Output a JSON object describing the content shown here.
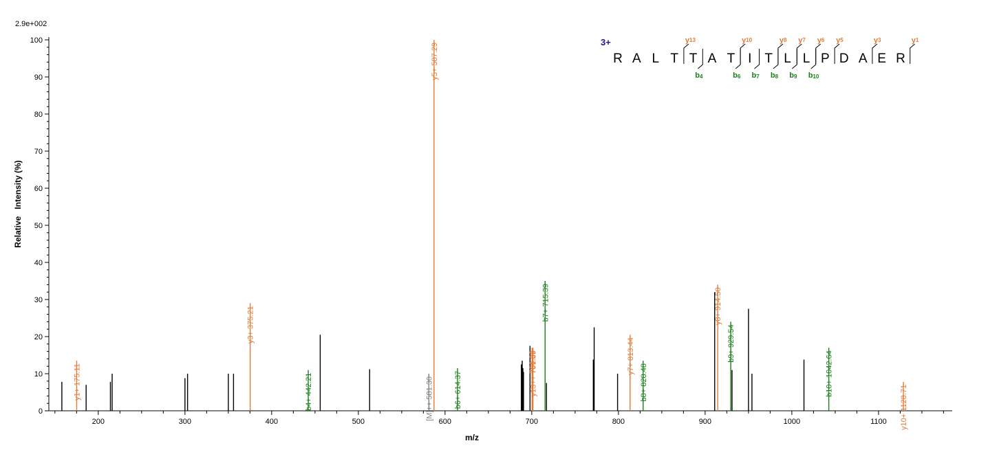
{
  "chart_data": {
    "type": "bar",
    "intensity_scale_label": "2.9e+002",
    "xlabel": "m/z",
    "ylabel": "Relative   Intensity (%)",
    "xlim": [
      143,
      1185
    ],
    "ylim": [
      0,
      100
    ],
    "x_ticks": [
      200,
      300,
      400,
      500,
      600,
      700,
      800,
      900,
      1000,
      1100
    ],
    "y_ticks": [
      0,
      10,
      20,
      30,
      40,
      50,
      60,
      70,
      80,
      90,
      100
    ],
    "colors": {
      "y_ion": "#e07b39",
      "b_ion": "#1a7f1a",
      "precursor": "#808080",
      "other": "#000000"
    },
    "peaks": [
      {
        "mz": 158.0,
        "intensity": 7.8,
        "type": "other",
        "label": ""
      },
      {
        "mz": 175.11,
        "intensity": 13.5,
        "type": "y",
        "label": "y1+ 175.11"
      },
      {
        "mz": 186.0,
        "intensity": 7.0,
        "type": "other",
        "label": ""
      },
      {
        "mz": 214.0,
        "intensity": 7.8,
        "type": "other",
        "label": ""
      },
      {
        "mz": 216.0,
        "intensity": 10.0,
        "type": "other",
        "label": ""
      },
      {
        "mz": 300.0,
        "intensity": 8.8,
        "type": "other",
        "label": ""
      },
      {
        "mz": 303.0,
        "intensity": 10.0,
        "type": "other",
        "label": ""
      },
      {
        "mz": 350.0,
        "intensity": 10.0,
        "type": "other",
        "label": ""
      },
      {
        "mz": 356.0,
        "intensity": 10.0,
        "type": "other",
        "label": ""
      },
      {
        "mz": 375.21,
        "intensity": 29.0,
        "type": "y",
        "label": "y3+ 375.21"
      },
      {
        "mz": 442.21,
        "intensity": 11.0,
        "type": "b",
        "label": "b4+ 442.21"
      },
      {
        "mz": 456.0,
        "intensity": 20.5,
        "type": "other",
        "label": ""
      },
      {
        "mz": 513.0,
        "intensity": 11.2,
        "type": "other",
        "label": ""
      },
      {
        "mz": 581.3,
        "intensity": 10.0,
        "type": "precursor",
        "label": "[M]++ 581.30"
      },
      {
        "mz": 587.29,
        "intensity": 100.0,
        "type": "y",
        "label": "y5+ 587.29"
      },
      {
        "mz": 614.37,
        "intensity": 11.5,
        "type": "b",
        "label": "b6+ 614.37"
      },
      {
        "mz": 688.0,
        "intensity": 12.5,
        "type": "other",
        "label": ""
      },
      {
        "mz": 689.0,
        "intensity": 13.5,
        "type": "other",
        "label": ""
      },
      {
        "mz": 689.8,
        "intensity": 11.5,
        "type": "other",
        "label": ""
      },
      {
        "mz": 690.5,
        "intensity": 10.5,
        "type": "other",
        "label": ""
      },
      {
        "mz": 698.0,
        "intensity": 17.5,
        "type": "other",
        "label": ""
      },
      {
        "mz": 700.36,
        "intensity": 17.0,
        "type": "y",
        "label": "700.36"
      },
      {
        "mz": 701.39,
        "intensity": 17.0,
        "type": "y",
        "label": "y13++ 701.39"
      },
      {
        "mz": 715.39,
        "intensity": 35.0,
        "type": "b",
        "label": "b7+ 715.39"
      },
      {
        "mz": 717.0,
        "intensity": 7.5,
        "type": "other",
        "label": ""
      },
      {
        "mz": 771.0,
        "intensity": 13.8,
        "type": "other",
        "label": ""
      },
      {
        "mz": 772.0,
        "intensity": 22.5,
        "type": "other",
        "label": ""
      },
      {
        "mz": 799.0,
        "intensity": 10.0,
        "type": "other",
        "label": ""
      },
      {
        "mz": 813.44,
        "intensity": 20.5,
        "type": "y",
        "label": "y7+ 813.44"
      },
      {
        "mz": 828.48,
        "intensity": 13.5,
        "type": "b",
        "label": "b8+ 828.48"
      },
      {
        "mz": 911.0,
        "intensity": 32.0,
        "type": "other",
        "label": ""
      },
      {
        "mz": 914.5,
        "intensity": 34.0,
        "type": "y",
        "label": "y8+ 914.50"
      },
      {
        "mz": 929.54,
        "intensity": 24.0,
        "type": "b",
        "label": "b9+ 929.54"
      },
      {
        "mz": 931.0,
        "intensity": 11.0,
        "type": "other",
        "label": ""
      },
      {
        "mz": 950.0,
        "intensity": 27.5,
        "type": "other",
        "label": ""
      },
      {
        "mz": 954.0,
        "intensity": 10.0,
        "type": "other",
        "label": ""
      },
      {
        "mz": 1014.0,
        "intensity": 13.8,
        "type": "other",
        "label": ""
      },
      {
        "mz": 1042.64,
        "intensity": 17.0,
        "type": "b",
        "label": "b10+ 1042.64"
      },
      {
        "mz": 1128.71,
        "intensity": 7.8,
        "type": "y",
        "label": "y10+ 1128.71"
      }
    ],
    "sequence": {
      "charge": "3+",
      "residues": [
        "R",
        "A",
        "L",
        "T",
        "T",
        "A",
        "T",
        "I",
        "T",
        "L",
        "L",
        "P",
        "D",
        "A",
        "E",
        "R"
      ],
      "y_ions": [
        {
          "after": 3,
          "ion": "y",
          "num": "13"
        },
        {
          "after": 6,
          "ion": "y",
          "num": "10"
        },
        {
          "after": 8,
          "ion": "y",
          "num": "8"
        },
        {
          "after": 9,
          "ion": "y",
          "num": "7"
        },
        {
          "after": 10,
          "ion": "y",
          "num": "6"
        },
        {
          "after": 11,
          "ion": "y",
          "num": "5"
        },
        {
          "after": 13,
          "ion": "y",
          "num": "3"
        },
        {
          "after": 15,
          "ion": "y",
          "num": "1"
        }
      ],
      "b_ions": [
        {
          "after": 4,
          "ion": "b",
          "num": "4"
        },
        {
          "after": 6,
          "ion": "b",
          "num": "6"
        },
        {
          "after": 7,
          "ion": "b",
          "num": "7"
        },
        {
          "after": 8,
          "ion": "b",
          "num": "8"
        },
        {
          "after": 9,
          "ion": "b",
          "num": "9"
        },
        {
          "after": 10,
          "ion": "b",
          "num": "10"
        }
      ]
    }
  }
}
